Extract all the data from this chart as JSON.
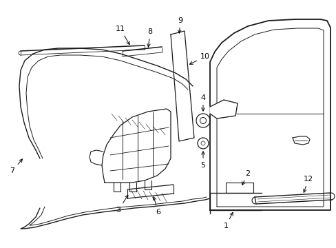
{
  "bg_color": "#ffffff",
  "line_color": "#1a1a1a",
  "figsize": [
    4.89,
    3.6
  ],
  "dpi": 100,
  "lw_main": 1.1,
  "lw_thin": 0.6,
  "fs": 8.0
}
